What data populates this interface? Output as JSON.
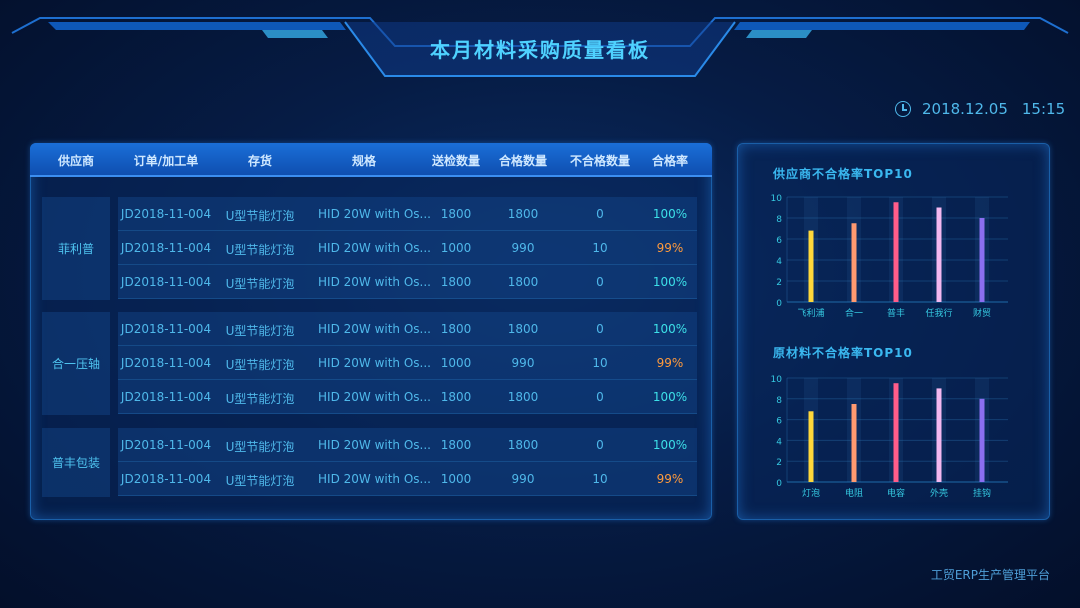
{
  "header": {
    "title": "本月材料采购质量看板",
    "date": "2018.12.05",
    "time": "15:15",
    "clock_icon": "clock-icon"
  },
  "table": {
    "columns": [
      "供应商",
      "订单/加工单",
      "存货",
      "规格",
      "送检数量",
      "合格数量",
      "不合格数量",
      "合格率"
    ],
    "groups": [
      {
        "supplier": "菲利普",
        "rows": [
          [
            "JD2018-11-004",
            "U型节能灯泡",
            "HID 20W with Os...",
            "1800",
            "1800",
            "0",
            "100%"
          ],
          [
            "JD2018-11-004",
            "U型节能灯泡",
            "HID 20W with Os...",
            "1000",
            "990",
            "10",
            "99%"
          ],
          [
            "JD2018-11-004",
            "U型节能灯泡",
            "HID 20W with Os...",
            "1800",
            "1800",
            "0",
            "100%"
          ]
        ]
      },
      {
        "supplier": "合一压轴",
        "rows": [
          [
            "JD2018-11-004",
            "U型节能灯泡",
            "HID 20W with Os...",
            "1800",
            "1800",
            "0",
            "100%"
          ],
          [
            "JD2018-11-004",
            "U型节能灯泡",
            "HID 20W with Os...",
            "1000",
            "990",
            "10",
            "99%"
          ],
          [
            "JD2018-11-004",
            "U型节能灯泡",
            "HID 20W with Os...",
            "1800",
            "1800",
            "0",
            "100%"
          ]
        ]
      },
      {
        "supplier": "普丰包装",
        "rows": [
          [
            "JD2018-11-004",
            "U型节能灯泡",
            "HID 20W with Os...",
            "1800",
            "1800",
            "0",
            "100%"
          ],
          [
            "JD2018-11-004",
            "U型节能灯泡",
            "HID 20W with Os...",
            "1000",
            "990",
            "10",
            "99%"
          ]
        ]
      }
    ]
  },
  "chart_data": [
    {
      "type": "bar",
      "title": "供应商不合格率TOP10",
      "categories": [
        "飞利浦",
        "合一",
        "普丰",
        "任我行",
        "财贸"
      ],
      "values": [
        6.8,
        7.5,
        9.5,
        9.0,
        8.0
      ],
      "ylim": [
        0,
        10
      ],
      "yticks": [
        "0",
        "2",
        "4",
        "6",
        "8",
        "10"
      ],
      "grid": true,
      "colors": [
        "#ffd83a",
        "#ff9a70",
        "#ff5d8a",
        "#f4b8f0",
        "#8a6ef0"
      ]
    },
    {
      "type": "bar",
      "title": "原材料不合格率TOP10",
      "categories": [
        "灯泡",
        "电阻",
        "电容",
        "外壳",
        "挂钩"
      ],
      "values": [
        6.8,
        7.5,
        9.5,
        9.0,
        8.0
      ],
      "ylim": [
        0,
        10
      ],
      "yticks": [
        "0",
        "2",
        "4",
        "6",
        "8",
        "10"
      ],
      "grid": true,
      "colors": [
        "#ffd83a",
        "#ff9a70",
        "#ff5d8a",
        "#f4b8f0",
        "#8a6ef0"
      ]
    }
  ],
  "colors": {
    "ok_rate": "#3de0e8",
    "bad_rate": "#ff9a3c",
    "accent": "#1a6fd8"
  },
  "footer": {
    "platform": "工贸ERP生产管理平台"
  }
}
